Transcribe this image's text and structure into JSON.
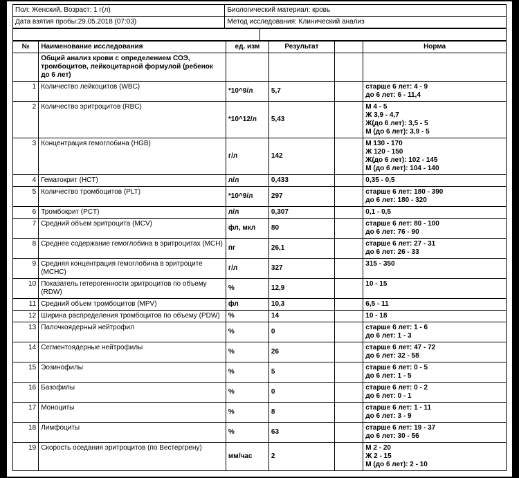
{
  "meta": {
    "sex_age": "Пол: Женский, Возраст: 1 г(л)",
    "material": "Биологический материал: кровь",
    "sample_date": "Дата взятия пробы:29.05.2018 (07:03)",
    "method": "Метод исследования: Клинический анализ"
  },
  "head": {
    "num": "№",
    "name": "Наименование исследования",
    "unit": "ед. изм",
    "result": "Результат",
    "norm": "Норма"
  },
  "group": {
    "title": "Общий анализ крови с определением СОЭ, тромбоцитов, лейкоцитарной формулой (ребенок до 6 лет)"
  },
  "rows": [
    {
      "n": "1",
      "name": "Количество лейкоцитов (WBC)",
      "unit": "*10^9/л",
      "res": "5,7",
      "norm": "старше 6 лет: 4 - 9\nдо 6 лет: 6 - 11,4"
    },
    {
      "n": "2",
      "name": "Количество эритроцитов (RBC)",
      "unit": "*10^12/л",
      "res": "5,43",
      "norm": "М 4 - 5\nЖ 3,9 - 4,7\nЖ(до 6 лет): 3,5 - 5\nМ (до 6 лет): 3,9 - 5"
    },
    {
      "n": "3",
      "name": "Концентрация гемоглобина (HGB)",
      "unit": "г/л",
      "res": "142",
      "norm": "М 130 - 170\nЖ 120 - 150\nЖ(до 6 лет): 102 - 145\nМ (до 6 лет): 104 - 140"
    },
    {
      "n": "4",
      "name": "Гематокрит (HCT)",
      "unit": "л/л",
      "res": "0,433",
      "norm": "0,35 - 0,5"
    },
    {
      "n": "5",
      "name": "Количество тромбоцитов (PLT)",
      "unit": "*10^9/л",
      "res": "297",
      "norm": "старше 6 лет: 180 - 390\nдо 6 лет: 180 - 320"
    },
    {
      "n": "6",
      "name": "Тромбокрит (PCT)",
      "unit": "л/л",
      "res": "0,307",
      "norm": "0,1 - 0,5"
    },
    {
      "n": "7",
      "name": "Средний объем эритроцита (MCV)",
      "unit": "фл, мкл",
      "res": "80",
      "norm": "старше 6 лет: 80 - 100\nдо 6 лет: 76 - 90"
    },
    {
      "n": "8",
      "name": "Среднее содержание гемоглобина в эритроцитах (MCH)",
      "unit": "пг",
      "res": "26,1",
      "norm": "старше 6 лет: 27 - 31\nдо 6 лет: 26 - 33"
    },
    {
      "n": "9",
      "name": "Средняя концентрация гемоглобина в эритроците (MCHC)",
      "unit": "г/л",
      "res": "327",
      "norm": "315 - 350"
    },
    {
      "n": "10",
      "name": "Показатель гетерогенности эритроцитов по объему (RDW)",
      "unit": "%",
      "res": "12,9",
      "norm": "10 - 15"
    },
    {
      "n": "11",
      "name": "Средний объем тромбоцитов (MPV)",
      "unit": "фл",
      "res": "10,3",
      "norm": "6,5 - 11"
    },
    {
      "n": "12",
      "name": "Ширина распределения тромбоцитов по объему (PDW)",
      "unit": "%",
      "res": "14",
      "norm": "10 - 18"
    },
    {
      "n": "13",
      "name": "Палочкоядерный нейтрофил",
      "unit": "%",
      "res": "0",
      "norm": "старше 6 лет: 1 - 6\nдо 6 лет: 1 - 3"
    },
    {
      "n": "14",
      "name": "Сегментоядерные нейтрофилы",
      "unit": "%",
      "res": "26",
      "norm": "старше 6 лет: 47 - 72\nдо 6 лет: 32 - 58"
    },
    {
      "n": "15",
      "name": "Эозинофилы",
      "unit": "%",
      "res": "5",
      "norm": "старше 6 лет: 0 - 5\nдо 6 лет: 1 - 5"
    },
    {
      "n": "16",
      "name": "Базофилы",
      "unit": "%",
      "res": "0",
      "norm": "старше 6 лет: 0 - 2\nдо 6 лет: 0 - 1"
    },
    {
      "n": "17",
      "name": "Моноциты",
      "unit": "%",
      "res": "8",
      "norm": "старше 6 лет: 1 - 11\nдо 6 лет: 3 - 9"
    },
    {
      "n": "18",
      "name": "Лимфоциты",
      "unit": "%",
      "res": "63",
      "norm": "старше 6 лет: 19 - 37\nдо 6 лет: 30 - 56"
    },
    {
      "n": "19",
      "name": "Скорость оседания эритроцитов (по Вестергрену)",
      "unit": "мм/час",
      "res": "2",
      "norm": "М 2 - 20\nЖ 2 - 15\nМ (до 6 лет): 2 - 10"
    }
  ]
}
